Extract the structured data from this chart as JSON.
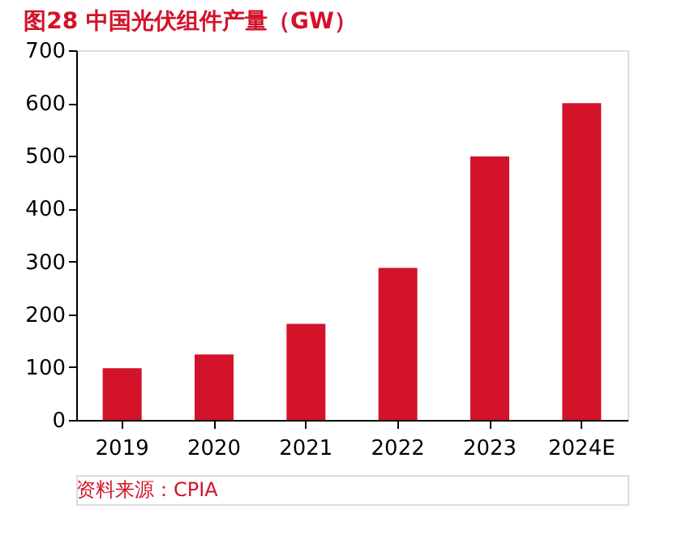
{
  "chart_data": {
    "type": "bar",
    "title": "图28  中国光伏组件产量（GW）",
    "categories": [
      "2019",
      "2020",
      "2021",
      "2022",
      "2023",
      "2024E"
    ],
    "values": [
      98,
      124,
      182,
      288,
      499,
      600
    ],
    "color": "#d2132a",
    "ylim": [
      0,
      700
    ],
    "yticks": [
      0,
      100,
      200,
      300,
      400,
      500,
      600,
      700
    ],
    "grid": false,
    "annotations": [
      "资料来源：CPIA"
    ]
  }
}
